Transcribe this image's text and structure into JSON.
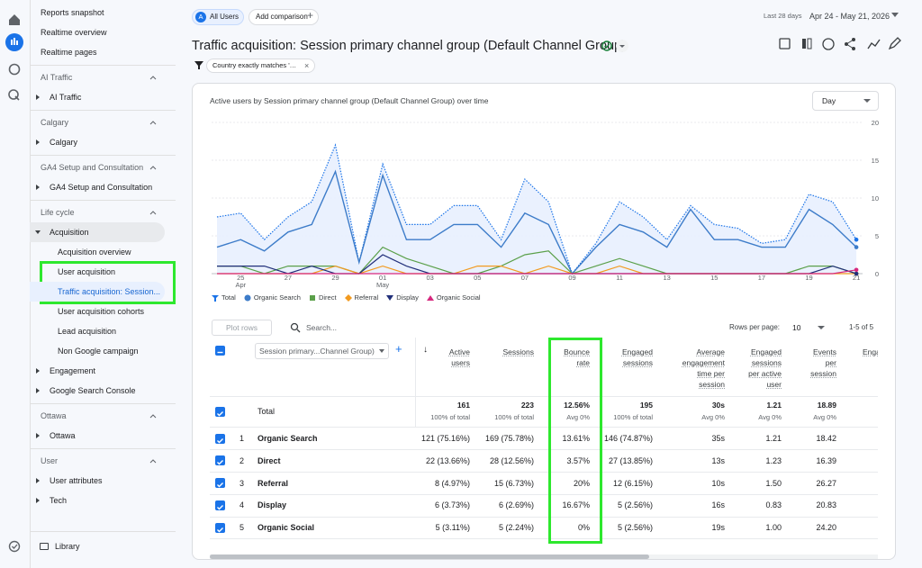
{
  "sidebar": {
    "top_items": [
      "Reports snapshot",
      "Realtime overview",
      "Realtime pages"
    ],
    "sections": [
      {
        "title": "AI Traffic",
        "items": [
          {
            "label": "AI Traffic"
          }
        ]
      },
      {
        "title": "Calgary",
        "items": [
          {
            "label": "Calgary"
          }
        ]
      },
      {
        "title": "GA4 Setup and Consultation",
        "items": [
          {
            "label": "GA4 Setup and Consultation"
          }
        ]
      },
      {
        "title": "Life cycle",
        "items": [
          {
            "label": "Acquisition",
            "expanded": true,
            "children": [
              {
                "label": "Acquisition overview"
              },
              {
                "label": "User acquisition"
              },
              {
                "label": "Traffic acquisition: Session...",
                "selected": true
              },
              {
                "label": "User acquisition cohorts"
              },
              {
                "label": "Lead acquisition"
              },
              {
                "label": "Non Google campaign"
              }
            ]
          },
          {
            "label": "Engagement"
          },
          {
            "label": "Google Search Console"
          }
        ]
      },
      {
        "title": "Ottawa",
        "items": [
          {
            "label": "Ottawa"
          }
        ]
      },
      {
        "title": "User",
        "items": [
          {
            "label": "User attributes"
          },
          {
            "label": "Tech"
          }
        ]
      }
    ],
    "library": "Library"
  },
  "header": {
    "segment_initial": "A",
    "segment": "All Users",
    "add_comparison": "Add comparison",
    "date_range_label": "Last 28 days",
    "date_range": "Apr 24 - May 21, 2026",
    "title": "Traffic acquisition: Session primary channel group (Default Channel Group)",
    "filter": "Country exactly matches '…"
  },
  "chart": {
    "type": "line",
    "title": "Active users by Session primary channel group (Default Channel Group) over time",
    "interval": "Day",
    "categories": [
      null,
      "25",
      null,
      "27",
      null,
      "29",
      null,
      "01",
      null,
      "03",
      null,
      "05",
      null,
      "07",
      null,
      "09",
      null,
      "11",
      null,
      "13",
      null,
      "15",
      null,
      "17",
      null,
      "19",
      null,
      "21"
    ],
    "months": [
      null,
      "Apr",
      null,
      null,
      null,
      null,
      null,
      "May",
      null,
      null,
      null,
      null,
      null,
      null,
      null,
      null,
      null,
      null,
      null,
      null,
      null,
      null,
      null,
      null,
      null,
      null,
      null,
      null
    ],
    "ylim": [
      0,
      20
    ],
    "yticks": [
      0,
      5,
      10,
      15,
      20
    ],
    "grid": true,
    "series": [
      {
        "name": "Total",
        "color": "#1a73e8",
        "values": [
          7.5,
          8,
          4.5,
          7.5,
          9.5,
          17,
          1.5,
          14.5,
          6.5,
          6.5,
          9,
          9,
          4.5,
          12.5,
          9.5,
          0,
          4,
          9.5,
          7.5,
          4.5,
          9,
          6.5,
          6,
          4,
          4.5,
          10.5,
          9.5,
          4.5
        ]
      },
      {
        "name": "Organic Search",
        "color": "#3d7cc9",
        "values": [
          3.5,
          4.5,
          3,
          5.5,
          6.5,
          13.5,
          1.5,
          13,
          4.5,
          4.5,
          6.5,
          6.5,
          3.5,
          8,
          6.5,
          0,
          3.5,
          6.5,
          5.5,
          3.5,
          8.5,
          4.5,
          4.5,
          3.5,
          3.5,
          8.5,
          6.5,
          3.5
        ]
      },
      {
        "name": "Direct",
        "color": "#5ba04a",
        "values": [
          1,
          1,
          0,
          1,
          1,
          1,
          0,
          3.5,
          2,
          1,
          0,
          0,
          1,
          2.5,
          3,
          0,
          1,
          2,
          1,
          0,
          0,
          0,
          0,
          0,
          0,
          1,
          1,
          0
        ]
      },
      {
        "name": "Referral",
        "color": "#f29a1f",
        "values": [
          0,
          0,
          0,
          0,
          0,
          1,
          0,
          1,
          0,
          0,
          0,
          1,
          1,
          0,
          1,
          0,
          0,
          1,
          0,
          0,
          0,
          0,
          0,
          0,
          0,
          0,
          0,
          0
        ]
      },
      {
        "name": "Display",
        "color": "#22307a",
        "values": [
          1,
          1,
          1,
          0,
          1,
          0,
          0,
          2.5,
          1,
          0,
          0,
          0,
          0,
          0,
          0,
          0,
          0,
          0,
          0,
          0,
          0,
          0,
          0,
          0,
          0,
          0,
          1,
          0
        ]
      },
      {
        "name": "Organic Social",
        "color": "#d6287e",
        "values": [
          0,
          0,
          0,
          0,
          0,
          0,
          0,
          0,
          0,
          0,
          0,
          0,
          0,
          0,
          0,
          0,
          0,
          0,
          0,
          0,
          0,
          0,
          0,
          0,
          0,
          0,
          0,
          0.5
        ]
      }
    ]
  },
  "table": {
    "plot_rows": "Plot rows",
    "search": "Search...",
    "rows_per_page_label": "Rows per page:",
    "rows_per_page": "10",
    "pagination": "1-5 of 5",
    "dimension": "Session primary...Channel Group)",
    "columns": [
      "Active users",
      "Sessions",
      "Bounce rate",
      "Engaged sessions",
      "Average engagement time per session",
      "Engaged sessions per active user",
      "Events per session",
      "Enga"
    ],
    "totals": {
      "label": "Total",
      "values": [
        "161",
        "223",
        "12.56%",
        "195",
        "30s",
        "1.21",
        "18.89"
      ],
      "notes": [
        "100% of total",
        "100% of total",
        "Avg 0%",
        "100% of total",
        "Avg 0%",
        "Avg 0%",
        "Avg 0%"
      ]
    },
    "rows": [
      {
        "index": 1,
        "name": "Organic Search",
        "cells": [
          "121 (75.16%)",
          "169 (75.78%)",
          "13.61%",
          "146 (74.87%)",
          "35s",
          "1.21",
          "18.42"
        ]
      },
      {
        "index": 2,
        "name": "Direct",
        "cells": [
          "22 (13.66%)",
          "28 (12.56%)",
          "3.57%",
          "27 (13.85%)",
          "13s",
          "1.23",
          "16.39"
        ]
      },
      {
        "index": 3,
        "name": "Referral",
        "cells": [
          "8 (4.97%)",
          "15 (6.73%)",
          "20%",
          "12 (6.15%)",
          "10s",
          "1.50",
          "26.27"
        ]
      },
      {
        "index": 4,
        "name": "Display",
        "cells": [
          "6 (3.73%)",
          "6 (2.69%)",
          "16.67%",
          "5 (2.56%)",
          "16s",
          "0.83",
          "20.83"
        ]
      },
      {
        "index": 5,
        "name": "Organic Social",
        "cells": [
          "5 (3.11%)",
          "5 (2.24%)",
          "0%",
          "5 (2.56%)",
          "19s",
          "1.00",
          "24.20"
        ]
      }
    ]
  }
}
